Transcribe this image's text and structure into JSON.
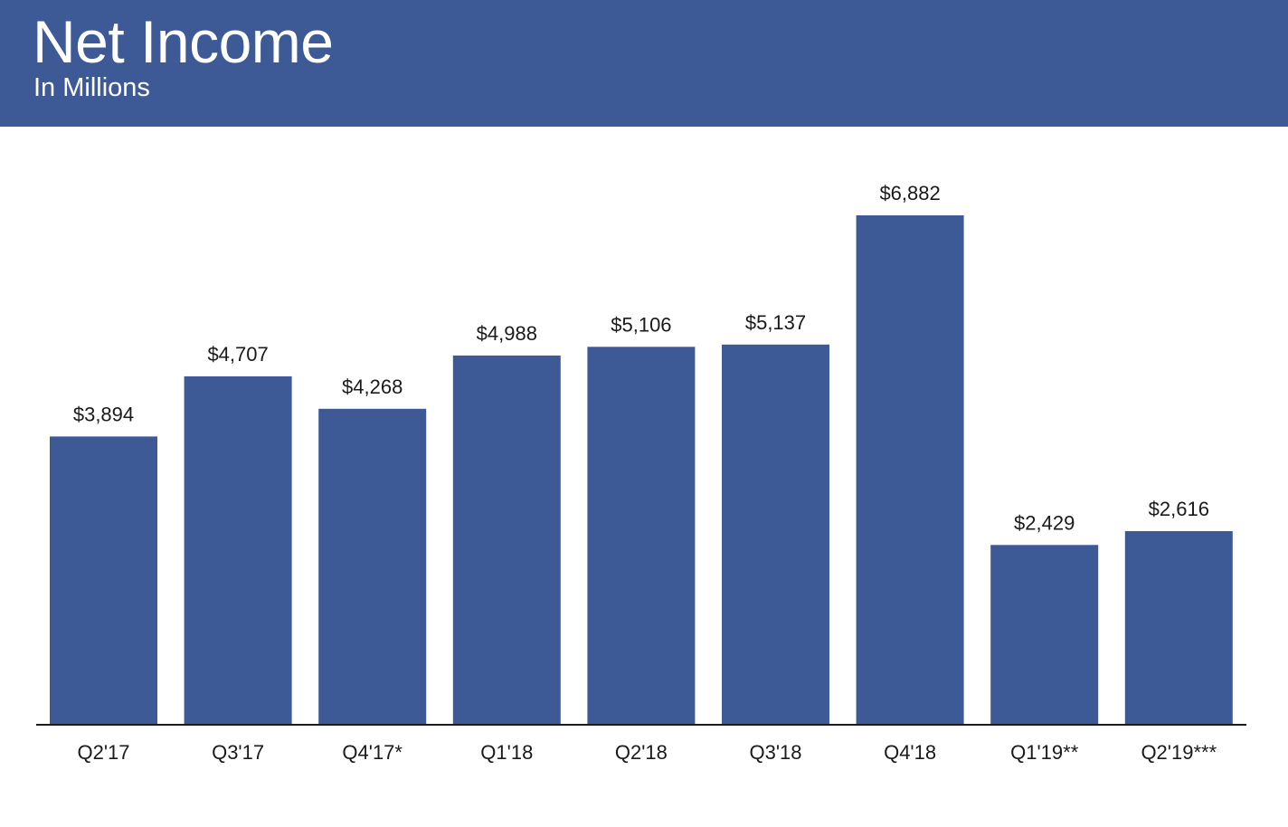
{
  "header": {
    "title": "Net Income",
    "subtitle": "In Millions"
  },
  "colors": {
    "header_bg": "#3d5a96",
    "bar": "#3d5a96",
    "axis": "#1a1a1a"
  },
  "chart_data": {
    "type": "bar",
    "title": "Net Income",
    "subtitle": "In Millions",
    "categories": [
      "Q2'17",
      "Q3'17",
      "Q4'17*",
      "Q1'18",
      "Q2'18",
      "Q3'18",
      "Q4'18",
      "Q1'19**",
      "Q2'19***"
    ],
    "values": [
      3894,
      4707,
      4268,
      4988,
      5106,
      5137,
      6882,
      2429,
      2616
    ],
    "value_labels": [
      "$3,894",
      "$4,707",
      "$4,268",
      "$4,988",
      "$5,106",
      "$5,137",
      "$6,882",
      "$2,429",
      "$2,616"
    ],
    "xlabel": "",
    "ylabel": "",
    "ylim": [
      0,
      6882
    ],
    "grid": false,
    "legend": "none"
  }
}
